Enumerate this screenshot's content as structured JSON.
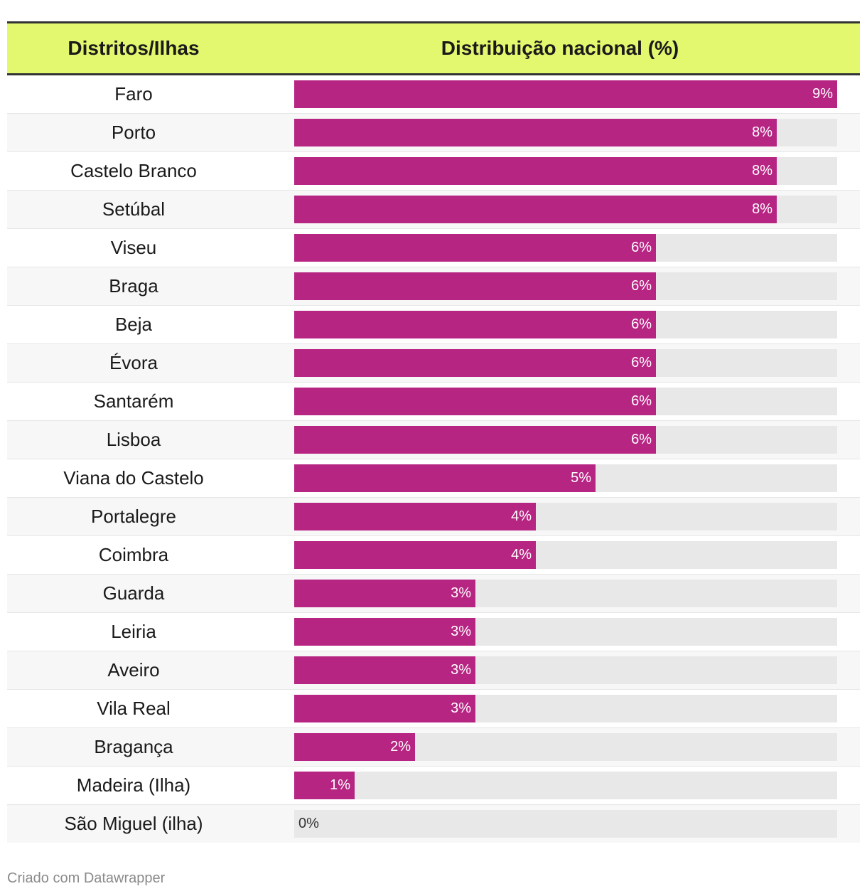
{
  "header": {
    "col_name": "Distritos/Ilhas",
    "col_value": "Distribuição nacional (%)"
  },
  "chart_data": {
    "type": "bar",
    "orientation": "horizontal",
    "title": "",
    "xlabel": "Distribuição nacional (%)",
    "ylabel": "Distritos/Ilhas",
    "xlim": [
      0,
      9
    ],
    "categories": [
      "Faro",
      "Porto",
      "Castelo Branco",
      "Setúbal",
      "Viseu",
      "Braga",
      "Beja",
      "Évora",
      "Santarém",
      "Lisboa",
      "Viana do Castelo",
      "Portalegre",
      "Coimbra",
      "Guarda",
      "Leiria",
      "Aveiro",
      "Vila Real",
      "Bragança",
      "Madeira (Ilha)",
      "São Miguel (ilha)"
    ],
    "values": [
      9,
      8,
      8,
      8,
      6,
      6,
      6,
      6,
      6,
      6,
      5,
      4,
      4,
      3,
      3,
      3,
      3,
      2,
      1,
      0
    ],
    "labels": [
      "9%",
      "8%",
      "8%",
      "8%",
      "6%",
      "6%",
      "6%",
      "6%",
      "6%",
      "6%",
      "5%",
      "4%",
      "4%",
      "3%",
      "3%",
      "3%",
      "3%",
      "2%",
      "1%",
      "0%"
    ],
    "bar_color": "#b72583",
    "track_color": "#e8e8e8",
    "header_color": "#e3f76f"
  },
  "footer": {
    "credit": "Criado com Datawrapper"
  }
}
